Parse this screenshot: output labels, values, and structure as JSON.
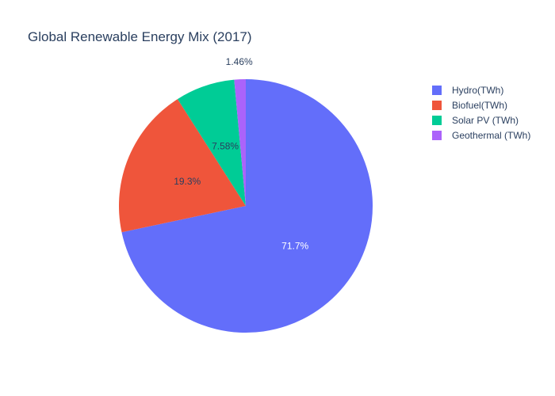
{
  "chart_data": {
    "type": "pie",
    "title": "Global Renewable Energy Mix (2017)",
    "categories": [
      "Hydro(TWh)",
      "Biofuel(TWh)",
      "Solar PV (TWh)",
      "Geothermal (TWh)"
    ],
    "values": [
      71.7,
      19.3,
      7.58,
      1.46
    ],
    "labels": [
      "71.7%",
      "19.3%",
      "7.58%",
      "1.46%"
    ],
    "colors": [
      "#636efa",
      "#ef553b",
      "#00cc96",
      "#ab63fa"
    ],
    "label_colors": [
      "#ffffff",
      "#2a3f5f",
      "#2a3f5f",
      "#2a3f5f"
    ],
    "label_outside": [
      false,
      false,
      false,
      true
    ],
    "legend": {
      "position": "top-right",
      "entries": [
        "Hydro(TWh)",
        "Biofuel(TWh)",
        "Solar PV (TWh)",
        "Geothermal (TWh)"
      ]
    },
    "direction": "clockwise",
    "start_angle_deg": 0
  }
}
